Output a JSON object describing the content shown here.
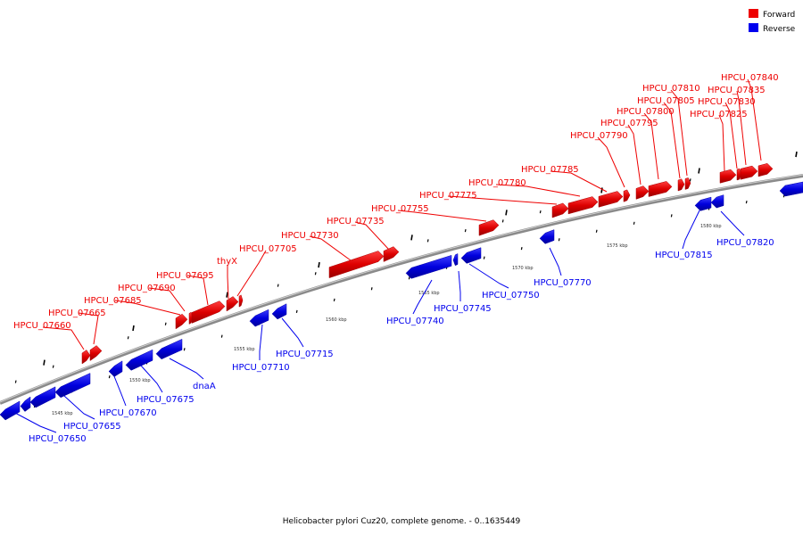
{
  "legend": {
    "forward_label": "Forward",
    "reverse_label": "Reverse",
    "forward_color": "#ee0000",
    "reverse_color": "#0000ee"
  },
  "caption": "Helicobacter pylori Cuz20, complete genome. - 0..1635449",
  "scale": {
    "unit": "kbp",
    "ticks": [
      "1545 kbp",
      "1550 kbp",
      "1555 kbp",
      "1560 kbp",
      "1565 kbp",
      "1570 kbp",
      "1575 kbp",
      "1580 kbp"
    ]
  },
  "forward_genes": [
    "HPCU_07660",
    "HPCU_07665",
    "HPCU_07685",
    "HPCU_07690",
    "HPCU_07695",
    "thyX",
    "HPCU_07705",
    "HPCU_07730",
    "HPCU_07735",
    "HPCU_07755",
    "HPCU_07775",
    "HPCU_07780",
    "HPCU_07785",
    "HPCU_07790",
    "HPCU_07795",
    "HPCU_07800",
    "HPCU_07805",
    "HPCU_07810",
    "HPCU_07825",
    "HPCU_07830",
    "HPCU_07835",
    "HPCU_07840"
  ],
  "reverse_genes": [
    "HPCU_07650",
    "HPCU_07655",
    "HPCU_07670",
    "HPCU_07675",
    "dnaA",
    "HPCU_07710",
    "HPCU_07715",
    "HPCU_07740",
    "HPCU_07745",
    "HPCU_07750",
    "HPCU_07770",
    "HPCU_07815",
    "HPCU_07820"
  ]
}
